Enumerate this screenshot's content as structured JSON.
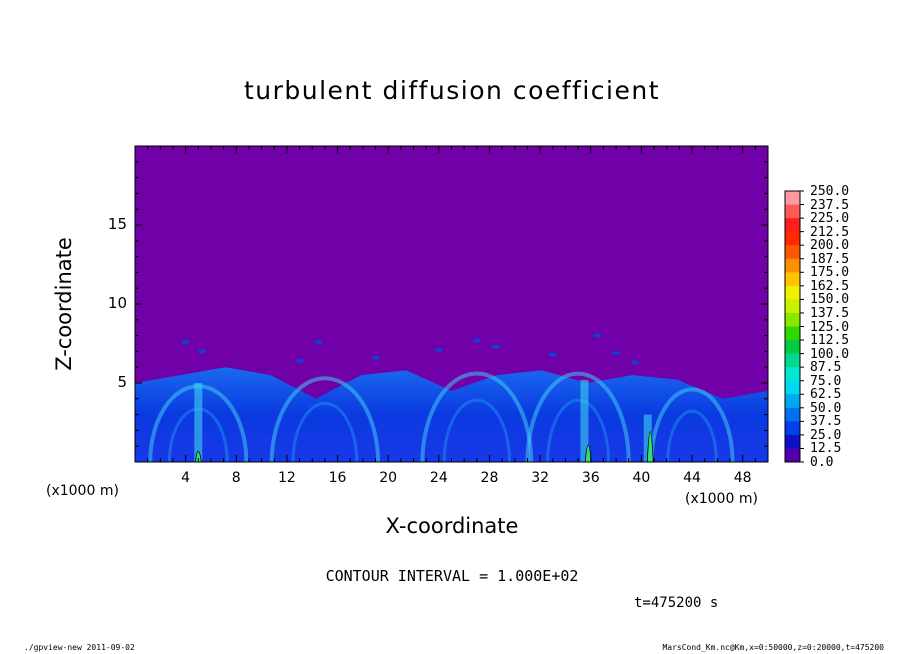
{
  "chart_data": {
    "type": "heatmap",
    "title": "turbulent diffusion coefficient",
    "xlabel": "X-coordinate",
    "ylabel": "Z-coordinate",
    "x_unit": "(x1000 m)",
    "y_unit": "(x1000 m)",
    "xlim": [
      0,
      50
    ],
    "ylim": [
      0,
      20
    ],
    "x_ticks": [
      "4",
      "8",
      "12",
      "16",
      "20",
      "24",
      "28",
      "32",
      "36",
      "40",
      "44",
      "48"
    ],
    "y_ticks": [
      "5",
      "10",
      "15"
    ],
    "colorbar": {
      "levels": [
        "250.0",
        "237.5",
        "225.0",
        "212.5",
        "200.0",
        "187.5",
        "175.0",
        "162.5",
        "150.0",
        "137.5",
        "125.0",
        "112.5",
        "100.0",
        "87.5",
        "75.0",
        "62.5",
        "50.0",
        "37.5",
        "25.0",
        "12.5",
        "0.0"
      ],
      "colors": [
        "#ff9aa0",
        "#ff5a5a",
        "#ff1e1e",
        "#ff2a00",
        "#ff5800",
        "#ff9000",
        "#ffc400",
        "#f0f000",
        "#c8f000",
        "#88e800",
        "#30d800",
        "#00cc40",
        "#00d890",
        "#00e8d0",
        "#00d8f0",
        "#00a8f0",
        "#0070f0",
        "#0040e8",
        "#1010c8",
        "#5000b0"
      ],
      "background_color": "#7000a8"
    },
    "contour_interval": "CONTOUR INTERVAL = 1.000E+02",
    "time": "t=475200 s",
    "boundary_layer_top_approx": [
      5.0,
      5.5,
      6.0,
      5.5,
      4.0,
      5.5,
      5.8,
      4.5,
      5.5,
      5.8,
      5.0,
      5.5,
      5.2,
      4.0,
      4.5
    ]
  },
  "footer": {
    "left": "./gpview-new  2011-09-02",
    "right": "MarsCond_Km.nc@Km,x=0:50000,z=0:20000,t=475200"
  }
}
